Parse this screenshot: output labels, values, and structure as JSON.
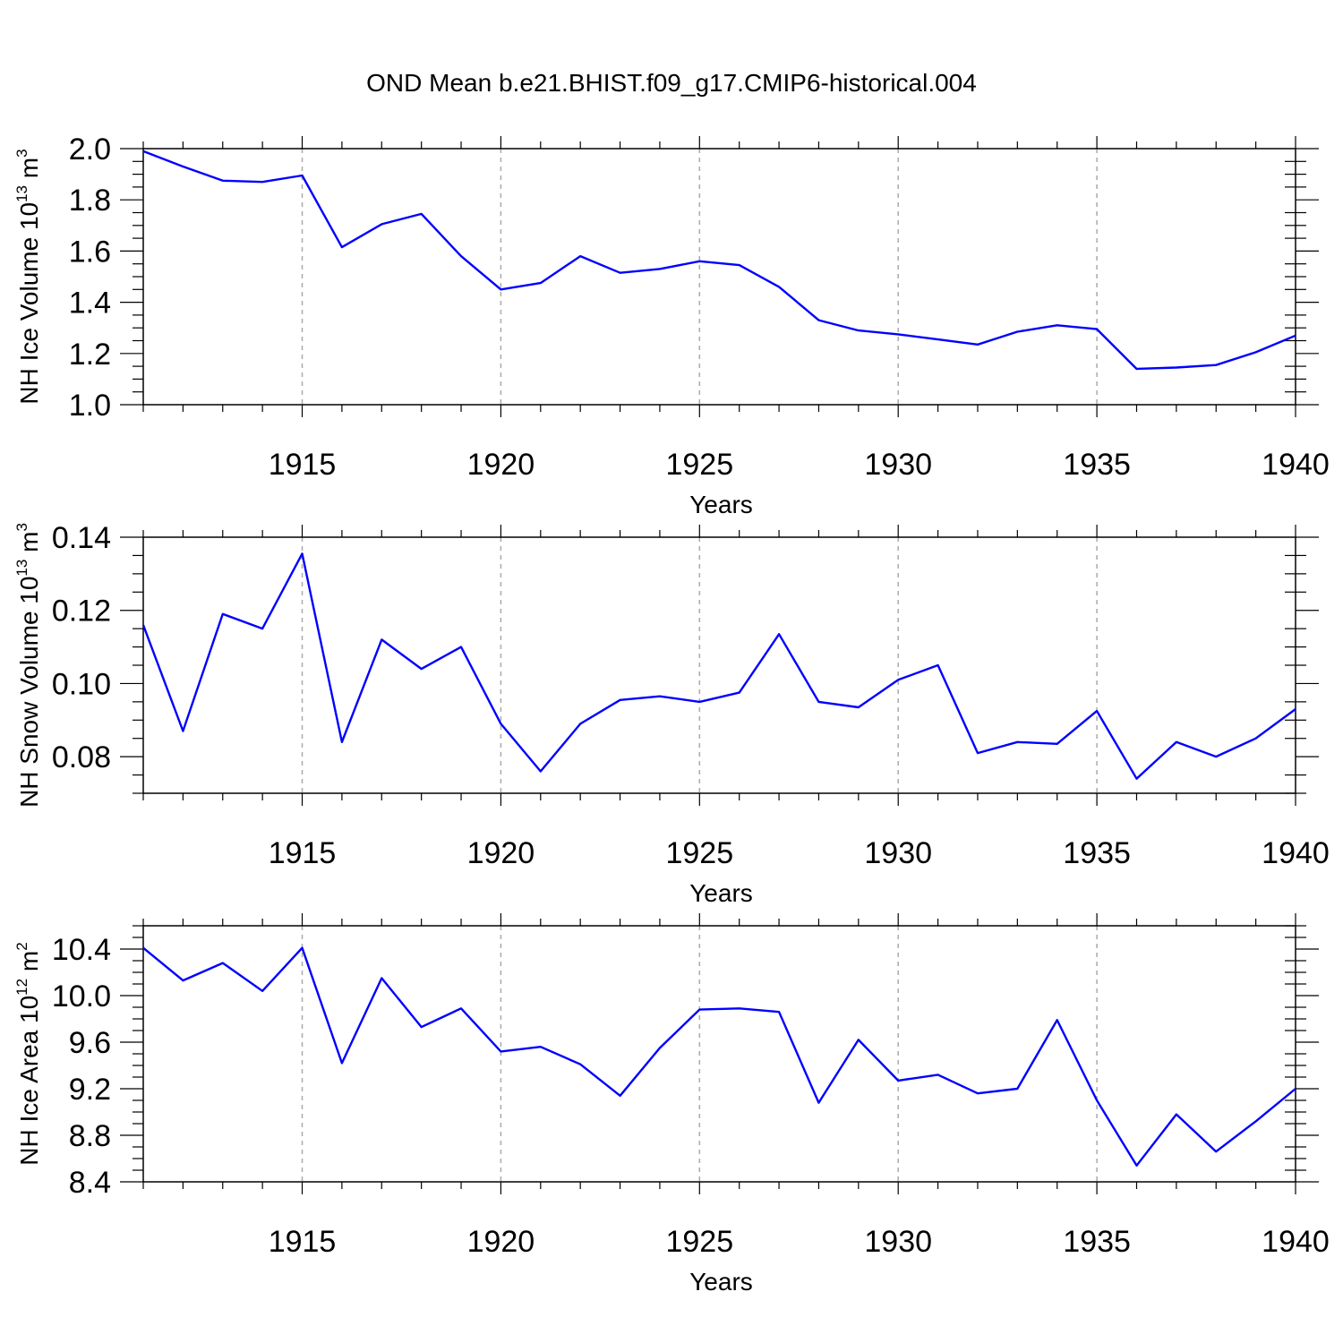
{
  "title": "OND Mean b.e21.BHIST.f09_g17.CMIP6-historical.004",
  "colors": {
    "line": "#0000ff",
    "axis": "#000000",
    "grid": "#aaaaaa"
  },
  "chart_data": [
    {
      "type": "line",
      "ylabel": {
        "text": "NH Ice Volume 10",
        "exponent": "13",
        "unit": " m",
        "unit_exponent": "3"
      },
      "xlabel": "Years",
      "xlim": [
        1911,
        1940
      ],
      "ylim": [
        1.0,
        2.0
      ],
      "x_ticks": [
        "1915",
        "1920",
        "1925",
        "1930",
        "1935",
        "1940"
      ],
      "y_ticks": [
        "1.0",
        "1.2",
        "1.4",
        "1.6",
        "1.8",
        "2.0"
      ],
      "series": [
        {
          "name": "NH Ice Volume",
          "x": [
            1911,
            1912,
            1913,
            1914,
            1915,
            1916,
            1917,
            1918,
            1919,
            1920,
            1921,
            1922,
            1923,
            1924,
            1925,
            1926,
            1927,
            1928,
            1929,
            1930,
            1931,
            1932,
            1933,
            1934,
            1935,
            1936,
            1937,
            1938,
            1939,
            1940
          ],
          "values": [
            1.99,
            1.93,
            1.875,
            1.87,
            1.895,
            1.615,
            1.705,
            1.745,
            1.58,
            1.45,
            1.475,
            1.58,
            1.515,
            1.53,
            1.56,
            1.545,
            1.46,
            1.33,
            1.29,
            1.275,
            1.255,
            1.235,
            1.285,
            1.31,
            1.295,
            1.14,
            1.145,
            1.155,
            1.205,
            1.27
          ]
        }
      ]
    },
    {
      "type": "line",
      "ylabel": {
        "text": "NH Snow Volume 10",
        "exponent": "13",
        "unit": " m",
        "unit_exponent": "3"
      },
      "xlabel": "Years",
      "xlim": [
        1911,
        1940
      ],
      "ylim": [
        0.07,
        0.14
      ],
      "x_ticks": [
        "1915",
        "1920",
        "1925",
        "1930",
        "1935",
        "1940"
      ],
      "y_ticks": [
        "0.08",
        "0.10",
        "0.12",
        "0.14"
      ],
      "series": [
        {
          "name": "NH Snow Volume",
          "x": [
            1911,
            1912,
            1913,
            1914,
            1915,
            1916,
            1917,
            1918,
            1919,
            1920,
            1921,
            1922,
            1923,
            1924,
            1925,
            1926,
            1927,
            1928,
            1929,
            1930,
            1931,
            1932,
            1933,
            1934,
            1935,
            1936,
            1937,
            1938,
            1939,
            1940
          ],
          "values": [
            0.116,
            0.087,
            0.119,
            0.115,
            0.1355,
            0.084,
            0.112,
            0.104,
            0.11,
            0.089,
            0.076,
            0.089,
            0.0955,
            0.0965,
            0.095,
            0.0975,
            0.1135,
            0.095,
            0.0935,
            0.101,
            0.105,
            0.081,
            0.084,
            0.0835,
            0.0925,
            0.074,
            0.084,
            0.08,
            0.085,
            0.093
          ]
        }
      ]
    },
    {
      "type": "line",
      "ylabel": {
        "text": "NH Ice Area 10",
        "exponent": "12",
        "unit": " m",
        "unit_exponent": "2"
      },
      "xlabel": "Years",
      "xlim": [
        1911,
        1940
      ],
      "ylim": [
        8.4,
        10.6
      ],
      "x_ticks": [
        "1915",
        "1920",
        "1925",
        "1930",
        "1935",
        "1940"
      ],
      "y_ticks": [
        "8.4",
        "8.8",
        "9.2",
        "9.6",
        "10.0",
        "10.4"
      ],
      "series": [
        {
          "name": "NH Ice Area",
          "x": [
            1911,
            1912,
            1913,
            1914,
            1915,
            1916,
            1917,
            1918,
            1919,
            1920,
            1921,
            1922,
            1923,
            1924,
            1925,
            1926,
            1927,
            1928,
            1929,
            1930,
            1931,
            1932,
            1933,
            1934,
            1935,
            1936,
            1937,
            1938,
            1939,
            1940
          ],
          "values": [
            10.41,
            10.13,
            10.28,
            10.04,
            10.41,
            9.42,
            10.15,
            9.73,
            9.89,
            9.52,
            9.56,
            9.41,
            9.14,
            9.55,
            9.88,
            9.89,
            9.86,
            9.08,
            9.62,
            9.27,
            9.32,
            9.16,
            9.2,
            9.79,
            9.1,
            8.54,
            8.98,
            8.66,
            8.92,
            9.2
          ]
        }
      ]
    }
  ]
}
